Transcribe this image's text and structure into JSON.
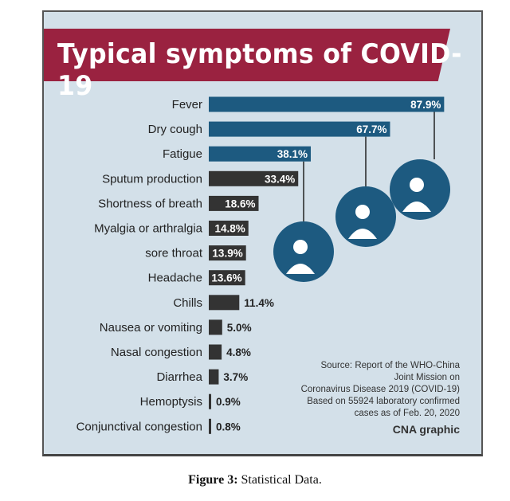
{
  "chart_data": {
    "type": "bar",
    "orientation": "horizontal",
    "title": "Typical symptoms of COVID-19",
    "categories": [
      "Fever",
      "Dry cough",
      "Fatigue",
      "Sputum production",
      "Shortness of breath",
      "Myalgia or arthralgia",
      "sore throat",
      "Headache",
      "Chills",
      "Nausea or vomiting",
      "Nasal congestion",
      "Diarrhea",
      "Hemoptysis",
      "Conjunctival congestion"
    ],
    "values": [
      87.9,
      67.7,
      38.1,
      33.4,
      18.6,
      14.8,
      13.9,
      13.6,
      11.4,
      5.0,
      4.8,
      3.7,
      0.9,
      0.8
    ],
    "labels": [
      "87.9%",
      "67.7%",
      "38.1%",
      "33.4%",
      "18.6%",
      "14.8%",
      "13.9%",
      "13.6%",
      "11.4%",
      "5.0%",
      "4.8%",
      "3.7%",
      "0.9%",
      "0.8%"
    ],
    "unit": "%",
    "xlim": [
      0,
      100
    ],
    "grid": false,
    "highlight_count": 3
  },
  "colors": {
    "highlight": "#1d5a80",
    "other": "#333333",
    "banner": "#9a2240",
    "background": "#d3e0e9"
  },
  "icons": [
    "coughing-person-icon",
    "sneezing-person-icon",
    "tired-person-at-desk-icon"
  ],
  "source": [
    "Source: Report of the WHO-China",
    "Joint Mission on",
    "Coronavirus Disease 2019 (COVID-19)",
    "Based on 55924 laboratory confirmed",
    "cases as of Feb. 20, 2020"
  ],
  "credit": "CNA graphic",
  "caption": {
    "label": "Figure 3:",
    "text": " Statistical Data."
  }
}
